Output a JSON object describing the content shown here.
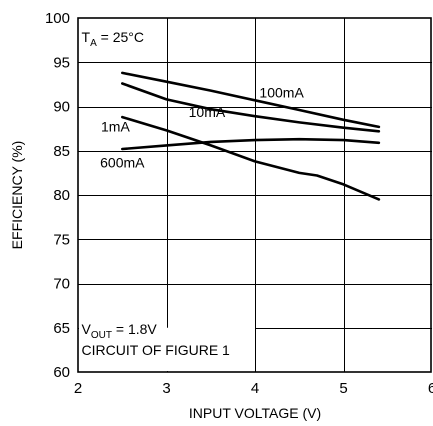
{
  "chart_data": {
    "type": "line",
    "title": "",
    "xlabel": "INPUT VOLTAGE (V)",
    "ylabel": "EFFICIENCY (%)",
    "xlim": [
      2,
      6
    ],
    "ylim": [
      60,
      100
    ],
    "xticks": [
      "2",
      "3",
      "4",
      "5",
      "6"
    ],
    "yticks": [
      "60",
      "65",
      "70",
      "75",
      "80",
      "85",
      "90",
      "95",
      "100"
    ],
    "grid": true,
    "annotations": {
      "temperature": {
        "prefix": "T",
        "sub": "A",
        "suffix": " = 25°C"
      },
      "vout": {
        "prefix": "V",
        "sub": "OUT",
        "suffix": " = 1.8V"
      },
      "circuit": "CIRCUIT OF FIGURE 1"
    },
    "series": [
      {
        "name": "100mA",
        "x": [
          2.5,
          3.0,
          3.5,
          4.0,
          4.5,
          5.0,
          5.4
        ],
        "y": [
          93.8,
          92.8,
          91.8,
          90.7,
          89.6,
          88.5,
          87.7
        ]
      },
      {
        "name": "10mA",
        "x": [
          2.5,
          3.0,
          3.5,
          4.0,
          4.5,
          5.0,
          5.4
        ],
        "y": [
          92.6,
          90.8,
          89.7,
          88.9,
          88.2,
          87.6,
          87.2
        ]
      },
      {
        "name": "1mA",
        "x": [
          2.5,
          3.0,
          3.5,
          4.0,
          4.5,
          4.7,
          5.0,
          5.4
        ],
        "y": [
          88.8,
          87.3,
          85.6,
          83.8,
          82.5,
          82.2,
          81.2,
          79.5
        ]
      },
      {
        "name": "600mA",
        "x": [
          2.5,
          3.0,
          3.5,
          4.0,
          4.5,
          5.0,
          5.4
        ],
        "y": [
          85.2,
          85.6,
          86.0,
          86.2,
          86.3,
          86.2,
          85.9
        ]
      }
    ]
  }
}
